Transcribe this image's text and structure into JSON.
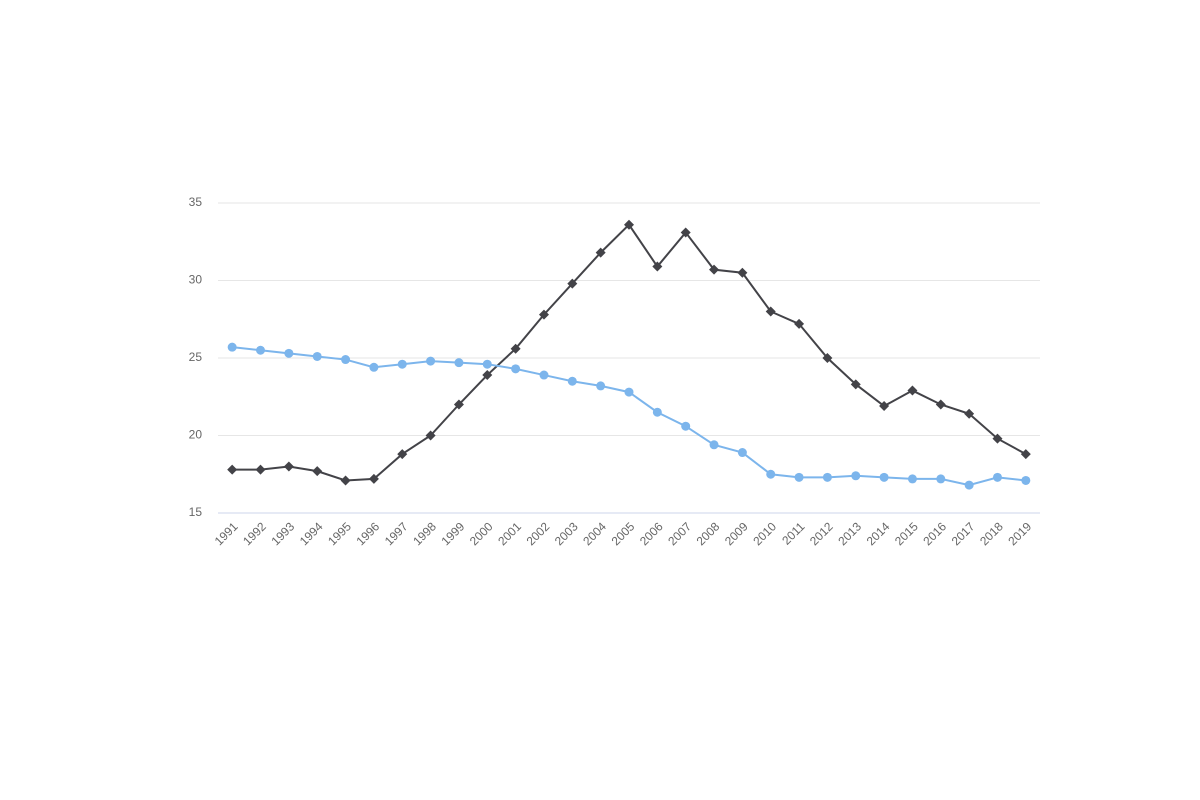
{
  "chart_data": {
    "type": "line",
    "categories": [
      "1991",
      "1992",
      "1993",
      "1994",
      "1995",
      "1996",
      "1997",
      "1998",
      "1999",
      "2000",
      "2001",
      "2002",
      "2003",
      "2004",
      "2005",
      "2006",
      "2007",
      "2008",
      "2009",
      "2010",
      "2011",
      "2012",
      "2013",
      "2014",
      "2015",
      "2016",
      "2017",
      "2018",
      "2019"
    ],
    "series": [
      {
        "color": "#434348",
        "marker": "diamond",
        "values": [
          17.8,
          17.8,
          18.0,
          17.7,
          17.1,
          17.2,
          18.8,
          20.0,
          22.0,
          23.9,
          25.6,
          27.8,
          29.8,
          31.8,
          33.6,
          30.9,
          33.1,
          30.7,
          30.5,
          28.0,
          27.2,
          25.0,
          23.3,
          21.9,
          22.9,
          22.0,
          21.4,
          19.8,
          18.8
        ]
      },
      {
        "color": "#7cb5ec",
        "marker": "circle",
        "values": [
          25.7,
          25.5,
          25.3,
          25.1,
          24.9,
          24.4,
          24.6,
          24.8,
          24.7,
          24.6,
          24.3,
          23.9,
          23.5,
          23.2,
          22.8,
          21.5,
          20.6,
          19.4,
          18.9,
          17.5,
          17.3,
          17.3,
          17.4,
          17.3,
          17.2,
          17.2,
          16.8,
          17.3,
          17.1
        ]
      }
    ],
    "ylim": [
      15,
      35
    ],
    "yticks": [
      15,
      20,
      25,
      30,
      35
    ],
    "grid": true
  }
}
